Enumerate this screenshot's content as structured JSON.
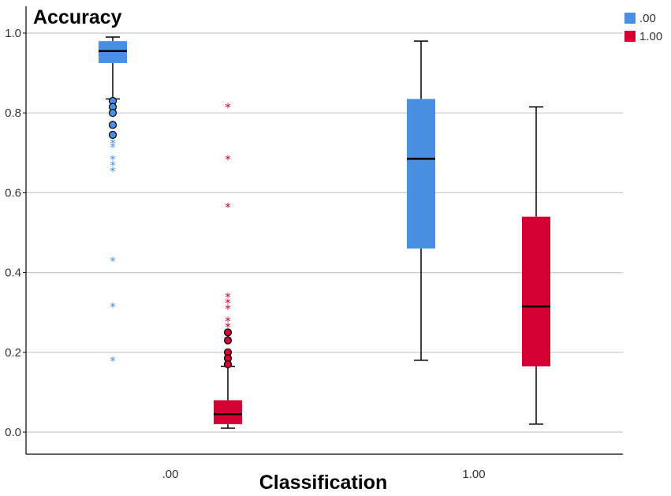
{
  "chart_data": {
    "type": "boxplot",
    "ylabel": "Accuracy",
    "xlabel": "Classification",
    "ylim": [
      -0.05,
      1.05
    ],
    "yticks": [
      "0.0",
      "0.2",
      "0.4",
      "0.6",
      "0.8",
      "1.0"
    ],
    "categories": [
      ".00",
      "1.00"
    ],
    "grid": true,
    "legend_position": "top-right",
    "series": [
      {
        "name": ".00",
        "color": "#4a90e2",
        "boxes": [
          {
            "category": ".00",
            "whisker_low": 0.835,
            "q1": 0.925,
            "median": 0.955,
            "q3": 0.98,
            "whisker_high": 0.99,
            "outliers": [
              0.83,
              0.815,
              0.8,
              0.77,
              0.745
            ],
            "extremes": [
              0.725,
              0.715,
              0.685,
              0.67,
              0.655,
              0.43,
              0.315,
              0.18
            ]
          },
          {
            "category": "1.00",
            "whisker_low": 0.18,
            "q1": 0.46,
            "median": 0.685,
            "q3": 0.835,
            "whisker_high": 0.98,
            "outliers": [],
            "extremes": []
          }
        ]
      },
      {
        "name": "1.00",
        "color": "#d40032",
        "boxes": [
          {
            "category": ".00",
            "whisker_low": 0.01,
            "q1": 0.02,
            "median": 0.045,
            "q3": 0.08,
            "whisker_high": 0.165,
            "outliers": [
              0.25,
              0.23,
              0.2,
              0.185,
              0.17
            ],
            "extremes": [
              0.815,
              0.685,
              0.565,
              0.34,
              0.325,
              0.31,
              0.28,
              0.265
            ]
          },
          {
            "category": "1.00",
            "whisker_low": 0.02,
            "q1": 0.165,
            "median": 0.315,
            "q3": 0.54,
            "whisker_high": 0.815,
            "outliers": [],
            "extremes": []
          }
        ]
      }
    ]
  }
}
